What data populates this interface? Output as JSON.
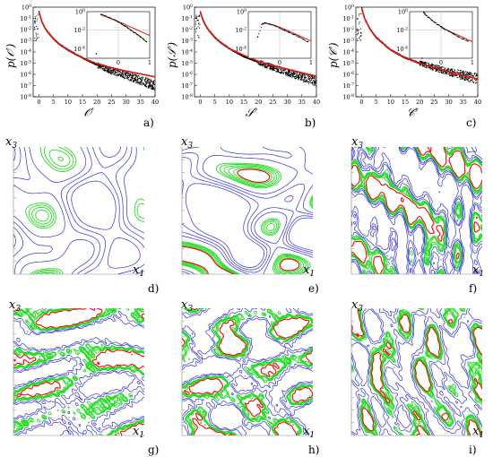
{
  "colors": {
    "data_points": "#000000",
    "fit_curve": "#e3180c",
    "contour_low": "#2f2fe0",
    "contour_mid": "#22dd22",
    "contour_high": "#ee1111"
  },
  "pdf_panels": [
    {
      "panel_label": "a)",
      "ylabel": "p(𝒪′)",
      "xlabel": "𝒪′"
    },
    {
      "panel_label": "b)",
      "ylabel": "p(𝒮′)",
      "xlabel": "𝒮′"
    },
    {
      "panel_label": "c)",
      "ylabel": "p(𝒞′)",
      "xlabel": "𝒞′"
    }
  ],
  "contour_panels": [
    {
      "panel_label": "d)",
      "xlabel": "x",
      "xlabel_sub": "1",
      "ylabel": "x",
      "ylabel_sub": "3"
    },
    {
      "panel_label": "e)",
      "xlabel": "x",
      "xlabel_sub": "1",
      "ylabel": "x",
      "ylabel_sub": "3"
    },
    {
      "panel_label": "f)",
      "xlabel": "x",
      "xlabel_sub": "1",
      "ylabel": "x",
      "ylabel_sub": "3"
    },
    {
      "panel_label": "g)",
      "xlabel": "x",
      "xlabel_sub": "1",
      "ylabel": "x",
      "ylabel_sub": "3"
    },
    {
      "panel_label": "h)",
      "xlabel": "x",
      "xlabel_sub": "1",
      "ylabel": "x",
      "ylabel_sub": "3"
    },
    {
      "panel_label": "i)",
      "xlabel": "x",
      "xlabel_sub": "1",
      "ylabel": "x",
      "ylabel_sub": "3"
    }
  ],
  "chart_data": [
    {
      "type": "scatter",
      "panel": "a",
      "x_ticks": [
        "0",
        "5",
        "10",
        "15",
        "20",
        "25",
        "30",
        "35",
        "40"
      ],
      "y_ticks": [
        "10^0",
        "10^-1",
        "10^-2",
        "10^-3",
        "10^-4",
        "10^-5",
        "10^-6",
        "10^-7",
        "10^-8"
      ],
      "xlim": [
        -2,
        40
      ],
      "ylim_log10": [
        -8,
        0
      ],
      "series": [
        {
          "kind": "points",
          "x": [
            0,
            1,
            2,
            3,
            5,
            7,
            10,
            15,
            20,
            25,
            30,
            35,
            40
          ],
          "y": [
            0.4,
            0.05,
            0.015,
            0.006,
            0.0015,
            0.0005,
            0.00015,
            3e-05,
            7e-06,
            2e-06,
            8e-07,
            3e-07,
            1e-07
          ]
        },
        {
          "kind": "fit",
          "x": [
            0,
            1,
            2,
            3,
            5,
            7,
            10,
            15,
            20,
            25,
            30,
            35,
            40
          ],
          "y": [
            0.4,
            0.05,
            0.015,
            0.006,
            0.0015,
            0.0005,
            0.00015,
            3e-05,
            9e-06,
            4e-06,
            2e-06,
            1.1e-06,
            6e-07
          ]
        }
      ],
      "inset": {
        "x_ticks": [
          "0",
          "1"
        ],
        "y_ticks": [
          "10^0",
          "10^-2",
          "10^-4"
        ],
        "xlim": [
          -1,
          1
        ],
        "ylim_log10": [
          -5,
          0
        ],
        "points": {
          "x": [
            -0.7,
            -0.55,
            -0.4,
            -0.25,
            -0.1,
            0,
            0.1,
            0.2,
            0.3,
            0.4,
            0.5,
            0.6,
            0.7,
            0.8,
            0.9
          ],
          "y": [
            3e-05,
            0.5,
            0.35,
            0.2,
            0.12,
            0.08,
            0.05,
            0.03,
            0.018,
            0.01,
            0.006,
            0.0035,
            0.002,
            0.0011,
            0.0006
          ]
        },
        "fit": {
          "x": [
            -0.55,
            -0.4,
            -0.2,
            0,
            0.2,
            0.4,
            0.6,
            0.8,
            1.0
          ],
          "y": [
            0.45,
            0.3,
            0.16,
            0.085,
            0.045,
            0.022,
            0.011,
            0.0055,
            0.0027
          ]
        }
      }
    },
    {
      "type": "scatter",
      "panel": "b",
      "x_ticks": [
        "0",
        "5",
        "10",
        "15",
        "20",
        "25",
        "30",
        "35",
        "40"
      ],
      "y_ticks": [
        "10^0",
        "10^-1",
        "10^-2",
        "10^-3",
        "10^-4",
        "10^-5",
        "10^-6",
        "10^-7",
        "10^-8"
      ],
      "xlim": [
        -2,
        40
      ],
      "ylim_log10": [
        -8,
        0
      ],
      "series": [
        {
          "kind": "points",
          "x": [
            -1,
            0,
            1,
            2,
            3,
            5,
            7,
            10,
            15,
            20,
            25,
            30,
            35,
            40
          ],
          "y": [
            1e-05,
            0.4,
            0.06,
            0.02,
            0.008,
            0.002,
            0.0007,
            0.0002,
            4e-05,
            1.2e-05,
            4e-06,
            1.5e-06,
            6e-07,
            2.5e-07
          ]
        },
        {
          "kind": "fit",
          "x": [
            0,
            1,
            2,
            3,
            5,
            7,
            10,
            15,
            20,
            25,
            30,
            35,
            40
          ],
          "y": [
            0.4,
            0.06,
            0.02,
            0.008,
            0.002,
            0.0007,
            0.0002,
            5e-05,
            1.5e-05,
            6e-06,
            3e-06,
            1.4e-06,
            7e-07
          ]
        }
      ],
      "inset": {
        "x_ticks": [
          "0",
          "1"
        ],
        "y_ticks": [
          "10^0",
          "10^-2",
          "10^-4"
        ],
        "xlim": [
          -1,
          1
        ],
        "ylim_log10": [
          -5,
          0
        ],
        "points": {
          "x": [
            -0.7,
            -0.55,
            -0.45,
            -0.3,
            -0.15,
            0,
            0.15,
            0.3,
            0.45,
            0.6,
            0.75,
            0.9
          ],
          "y": [
            0.002,
            0.05,
            0.06,
            0.045,
            0.03,
            0.018,
            0.01,
            0.006,
            0.0035,
            0.002,
            0.0011,
            0.0006
          ]
        },
        "fit": {
          "x": [
            -0.6,
            -0.45,
            -0.3,
            -0.1,
            0.1,
            0.3,
            0.5,
            0.7,
            0.9,
            1.0
          ],
          "y": [
            0.04,
            0.06,
            0.045,
            0.028,
            0.016,
            0.008,
            0.004,
            0.002,
            0.001,
            0.0007
          ]
        }
      }
    },
    {
      "type": "scatter",
      "panel": "c",
      "x_ticks": [
        "0",
        "5",
        "10",
        "15",
        "20",
        "25",
        "30",
        "35",
        "40"
      ],
      "y_ticks": [
        "10^0",
        "10^-1",
        "10^-2",
        "10^-3",
        "10^-4",
        "10^-5",
        "10^-6",
        "10^-7",
        "10^-8"
      ],
      "xlim": [
        -2,
        40
      ],
      "ylim_log10": [
        -8,
        0
      ],
      "series": [
        {
          "kind": "points",
          "x": [
            0,
            0.5,
            1,
            2,
            3,
            5,
            7,
            10,
            15,
            20,
            25,
            30,
            35,
            40
          ],
          "y": [
            0.8,
            0.3,
            0.1,
            0.03,
            0.01,
            0.002,
            0.0007,
            0.00015,
            3e-05,
            1e-05,
            4e-06,
            1.7e-06,
            8e-07,
            4e-07
          ]
        },
        {
          "kind": "fit",
          "x": [
            0,
            1,
            2,
            3,
            5,
            7,
            10,
            15,
            20,
            25,
            30,
            35,
            40
          ],
          "y": [
            0.8,
            0.1,
            0.03,
            0.01,
            0.002,
            0.0007,
            0.00015,
            3e-05,
            1e-05,
            4e-06,
            1.7e-06,
            8e-07,
            4e-07
          ]
        }
      ],
      "inset": {
        "x_ticks": [
          "0",
          "1"
        ],
        "y_ticks": [
          "10^0",
          "10^-2",
          "10^-4"
        ],
        "xlim": [
          -1,
          1
        ],
        "ylim_log10": [
          -5,
          0
        ],
        "points": {
          "x": [
            -0.6,
            -0.55,
            -0.5,
            -0.4,
            -0.3,
            -0.2,
            -0.1,
            0,
            0.1,
            0.25,
            0.4,
            0.55,
            0.7,
            0.85
          ],
          "y": [
            1e-05,
            0.9,
            0.5,
            0.25,
            0.12,
            0.07,
            0.04,
            0.025,
            0.015,
            0.008,
            0.004,
            0.002,
            0.0012,
            0.0007
          ]
        },
        "fit": {
          "x": [
            0,
            0.2,
            0.4,
            0.6,
            0.8,
            1.0
          ],
          "y": [
            0.02,
            0.01,
            0.005,
            0.0025,
            0.0012,
            0.0006
          ]
        }
      }
    }
  ]
}
